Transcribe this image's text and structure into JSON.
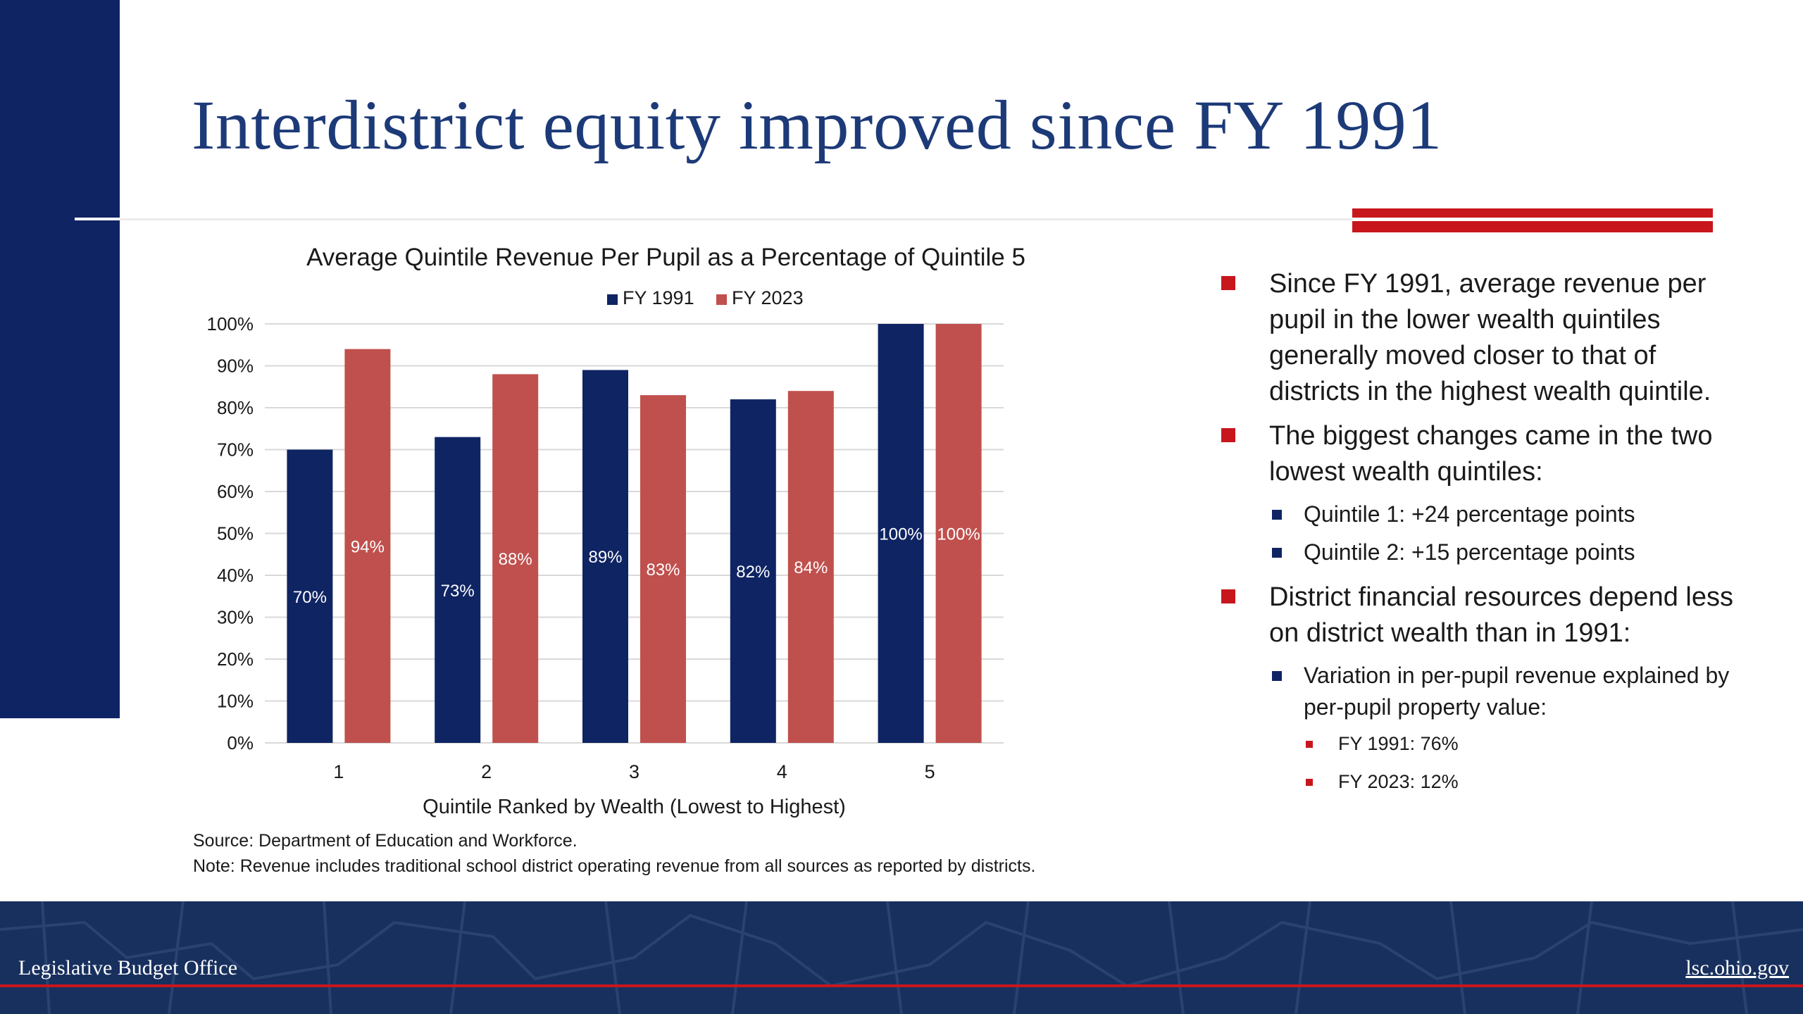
{
  "slide": {
    "title": "Interdistrict equity improved since FY 1991"
  },
  "colors": {
    "navy": "#0f2463",
    "series_1": "#0f2463",
    "series_2": "#c0504d",
    "accent_red": "#c8161d",
    "title_blue": "#1d3a78"
  },
  "chart_data": {
    "type": "bar",
    "title": "Average Quintile Revenue Per Pupil as a Percentage of Quintile 5",
    "xlabel": "Quintile Ranked by Wealth (Lowest to Highest)",
    "ylabel": "",
    "categories": [
      "1",
      "2",
      "3",
      "4",
      "5"
    ],
    "series": [
      {
        "name": "FY 1991",
        "values": [
          70,
          73,
          89,
          82,
          100
        ],
        "labels": [
          "70%",
          "73%",
          "89%",
          "82%",
          "100%"
        ]
      },
      {
        "name": "FY 2023",
        "values": [
          94,
          88,
          83,
          84,
          100
        ],
        "labels": [
          "94%",
          "88%",
          "83%",
          "84%",
          "100%"
        ]
      }
    ],
    "ylim": [
      0,
      100
    ],
    "yticks": [
      "0%",
      "10%",
      "20%",
      "30%",
      "40%",
      "50%",
      "60%",
      "70%",
      "80%",
      "90%",
      "100%"
    ],
    "grid": true,
    "legend": "top"
  },
  "notes": {
    "source": "Source: Department of Education and Workforce.",
    "note": "Note: Revenue includes traditional school district operating revenue from all sources as reported by districts."
  },
  "bullets": {
    "b1": "Since FY 1991, average revenue per pupil in the lower wealth quintiles generally moved closer to that of districts in the highest wealth quintile.",
    "b2": "The biggest changes came in the two lowest wealth quintiles:",
    "b2_1": "Quintile 1: +24 percentage points",
    "b2_2": "Quintile 2: +15 percentage points",
    "b3": "District financial resources depend less on district wealth than in 1991:",
    "b3_1": "Variation in per-pupil revenue explained by per-pupil property value:",
    "b3_1_1": "FY 1991: 76%",
    "b3_1_2": "FY 2023: 12%"
  },
  "footer": {
    "left": "Legislative Budget Office",
    "right": "lsc.ohio.gov"
  }
}
